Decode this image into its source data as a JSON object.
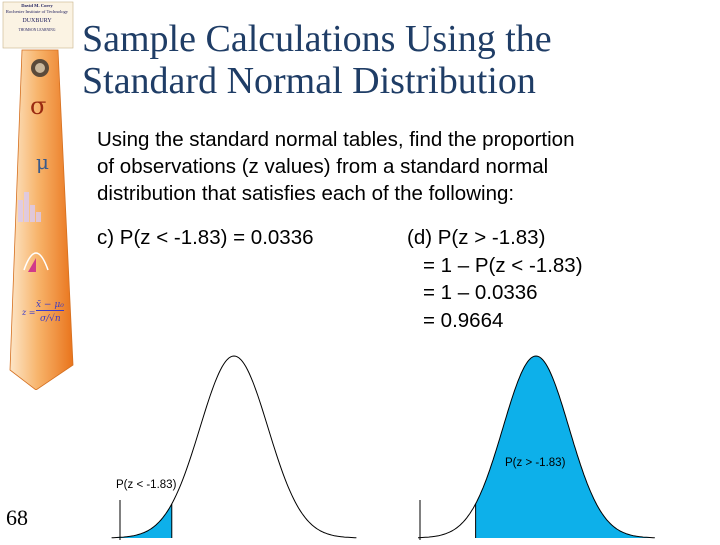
{
  "publisher": {
    "line1": "David M. Corry",
    "line2": "Rochester Institute of Technology",
    "line3": "DUXBURY",
    "line4": "THOMSON LEARNING"
  },
  "tie_symbols": {
    "sigma": "σ",
    "mu": "μ",
    "formula_z": "z =",
    "formula_num": "x̄ − μ₀",
    "formula_den": "σ/√n"
  },
  "title": {
    "line1": "Sample Calculations Using the",
    "line2": "Standard Normal Distribution"
  },
  "intro": {
    "line1": "Using the standard normal tables, find the proportion",
    "line2": "of observations (z values) from a standard normal",
    "line3": "distribution that satisfies each of the following:"
  },
  "part_c": "c)  P(z < -1.83) = 0.0336",
  "part_d": {
    "line1": "(d) P(z > -1.83)",
    "line2": "= 1 – P(z < -1.83)",
    "line3": "= 1 – 0.0336",
    "line4": "= 0.9664"
  },
  "curves": {
    "left_label": "P(z < -1.83)",
    "right_label": "P(z > -1.83)",
    "shade_color": "#0db0ea",
    "cutoff_z": -1.83
  },
  "slide_number": "68",
  "colors": {
    "title": "#1f3d66",
    "tie_orange": "#f08a2e",
    "tie_light": "#fde6c8"
  }
}
